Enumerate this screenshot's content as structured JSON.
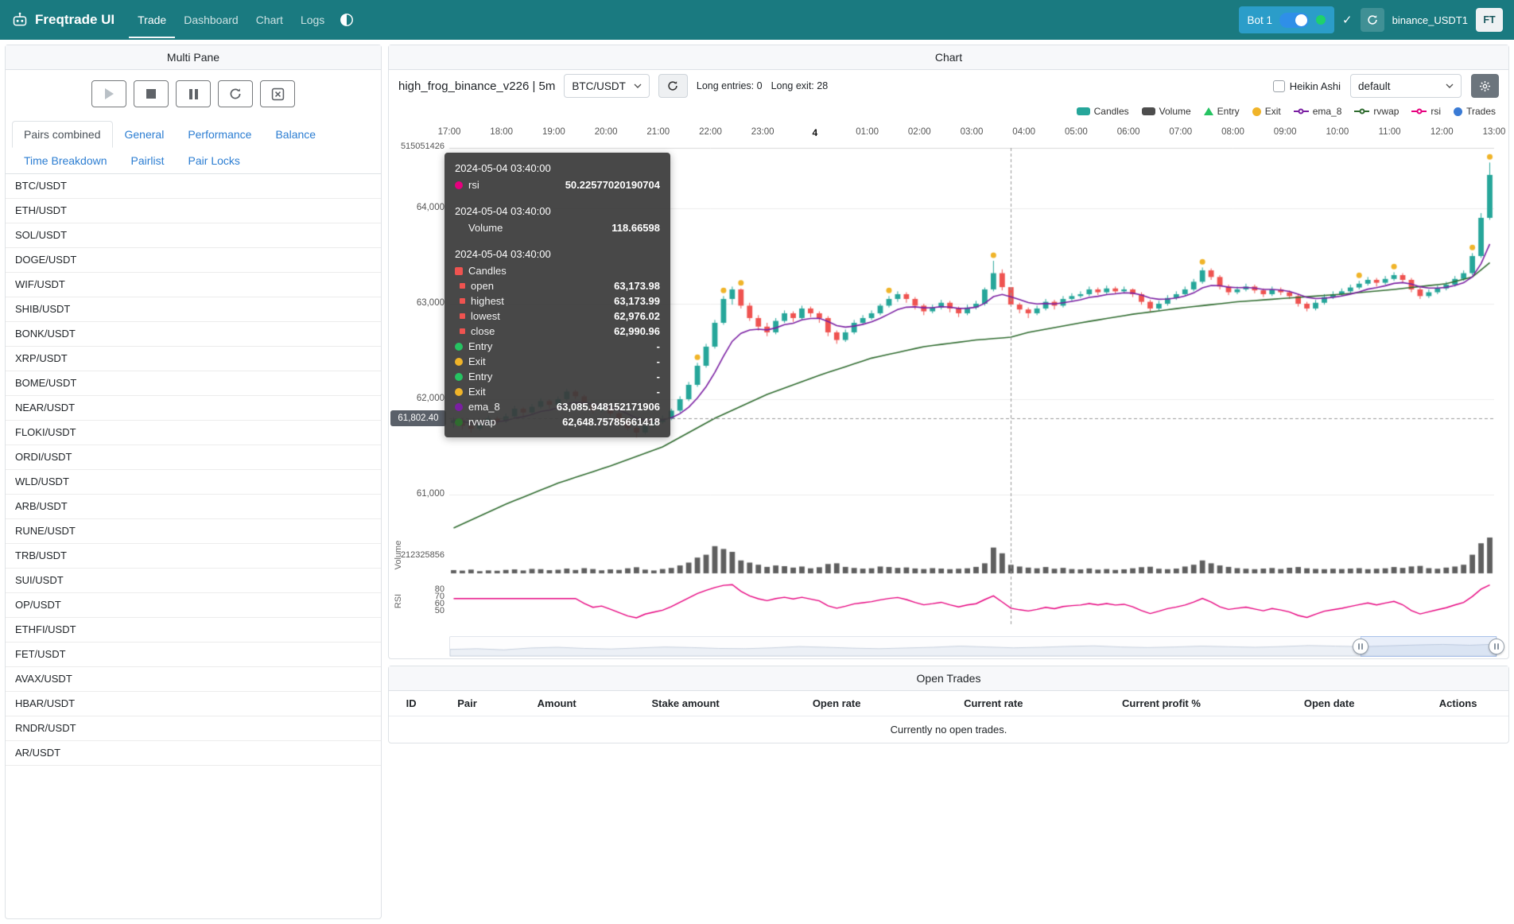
{
  "navbar": {
    "brand": "Freqtrade UI",
    "items": [
      {
        "label": "Trade",
        "active": true
      },
      {
        "label": "Dashboard",
        "active": false
      },
      {
        "label": "Chart",
        "active": false
      },
      {
        "label": "Logs",
        "active": false
      }
    ],
    "bot_chip": {
      "label": "Bot 1"
    },
    "check_label": "✓",
    "login_label": "binance_USDT1",
    "avatar_label": "FT"
  },
  "sidebar": {
    "title": "Multi Pane",
    "tabs": [
      {
        "label": "Pairs combined",
        "active": true
      },
      {
        "label": "General",
        "active": false
      },
      {
        "label": "Performance",
        "active": false
      },
      {
        "label": "Balance",
        "active": false
      },
      {
        "label": "Time Breakdown",
        "active": false
      },
      {
        "label": "Pairlist",
        "active": false
      },
      {
        "label": "Pair Locks",
        "active": false
      }
    ],
    "pairs": [
      "BTC/USDT",
      "ETH/USDT",
      "SOL/USDT",
      "DOGE/USDT",
      "WIF/USDT",
      "SHIB/USDT",
      "BONK/USDT",
      "XRP/USDT",
      "BOME/USDT",
      "NEAR/USDT",
      "FLOKI/USDT",
      "ORDI/USDT",
      "WLD/USDT",
      "ARB/USDT",
      "RUNE/USDT",
      "TRB/USDT",
      "SUI/USDT",
      "OP/USDT",
      "ETHFI/USDT",
      "FET/USDT",
      "AVAX/USDT",
      "HBAR/USDT",
      "RNDR/USDT",
      "AR/USDT"
    ]
  },
  "chart": {
    "panel_title": "Chart",
    "strategy_label": "high_frog_binance_v226 | 5m",
    "pair_selected": "BTC/USDT",
    "long_entries_label": "Long entries: 0",
    "long_exits_label": "Long exit: 28",
    "heikin_label": "Heikin Ashi",
    "plot_config_selected": "default",
    "volume_axis_label": "Volume",
    "rsi_axis_label": "RSI",
    "axis_top_label": "515051426",
    "axis_volume_label": "212325856",
    "price_pointer_label": "61,802.40",
    "legend": [
      {
        "label": "Candles",
        "shape": "roundrect",
        "color": "#26a69a"
      },
      {
        "label": "Volume",
        "shape": "roundrect",
        "color": "#4d4d4d"
      },
      {
        "label": "Entry",
        "shape": "triangle",
        "color": "#26c362"
      },
      {
        "label": "Exit",
        "shape": "circle",
        "color": "#f0b429"
      },
      {
        "label": "ema_8",
        "shape": "linedot",
        "color": "#7a1fa2"
      },
      {
        "label": "rvwap",
        "shape": "linedot",
        "color": "#2f6b2f"
      },
      {
        "label": "rsi",
        "shape": "linedot",
        "color": "#e6007e"
      },
      {
        "label": "Trades",
        "shape": "circle",
        "color": "#3a7bd5"
      }
    ]
  },
  "tooltip": {
    "groups": [
      {
        "time": "2024-05-04 03:40:00",
        "rows": [
          {
            "m": "dot",
            "c": "#e6007e",
            "label": "rsi",
            "value": "50.22577020190704"
          }
        ]
      },
      {
        "time": "2024-05-04 03:40:00",
        "rows": [
          {
            "m": "none",
            "c": "",
            "label": "Volume",
            "value": "118.66598"
          }
        ]
      },
      {
        "time": "2024-05-04 03:40:00",
        "rows": [
          {
            "m": "sq",
            "c": "#ef5350",
            "label": "Candles",
            "value": ""
          },
          {
            "m": "minisq",
            "c": "#ef5350",
            "label": "open",
            "value": "63,173.98"
          },
          {
            "m": "minisq",
            "c": "#ef5350",
            "label": "highest",
            "value": "63,173.99"
          },
          {
            "m": "minisq",
            "c": "#ef5350",
            "label": "lowest",
            "value": "62,976.02"
          },
          {
            "m": "minisq",
            "c": "#ef5350",
            "label": "close",
            "value": "62,990.96"
          },
          {
            "m": "dot",
            "c": "#26c362",
            "label": "Entry",
            "value": "-"
          },
          {
            "m": "dot",
            "c": "#f0b429",
            "label": "Exit",
            "value": "-"
          },
          {
            "m": "dot",
            "c": "#26c362",
            "label": "Entry",
            "value": "-"
          },
          {
            "m": "dot",
            "c": "#f0b429",
            "label": "Exit",
            "value": "-"
          },
          {
            "m": "dot",
            "c": "#7a1fa2",
            "label": "ema_8",
            "value": "63,085.948152171906"
          },
          {
            "m": "dot",
            "c": "#2f6b2f",
            "label": "rvwap",
            "value": "62,648.75785661418"
          }
        ]
      }
    ]
  },
  "chart_data": {
    "type": "candlestick",
    "pair": "BTC/USDT",
    "timeframe": "5m",
    "x_labels": [
      "17:00",
      "18:00",
      "19:00",
      "20:00",
      "21:00",
      "22:00",
      "23:00",
      "4",
      "01:00",
      "02:00",
      "03:00",
      "04:00",
      "05:00",
      "06:00",
      "07:00",
      "08:00",
      "09:00",
      "10:00",
      "11:00",
      "12:00",
      "13:00"
    ],
    "ylim": [
      60633,
      64633
    ],
    "price_ticks": [
      {
        "v": 64000,
        "label": "64,000"
      },
      {
        "v": 63000,
        "label": "63,000"
      },
      {
        "v": 62000,
        "label": "62,000"
      },
      {
        "v": 61000,
        "label": "61,000"
      }
    ],
    "rsi_ticks": [
      {
        "v": 80,
        "label": "80"
      },
      {
        "v": 70,
        "label": "70"
      },
      {
        "v": 60,
        "label": "60"
      },
      {
        "v": 50,
        "label": "50"
      }
    ],
    "rsi_ylim": [
      30,
      95
    ],
    "ema_period": 8,
    "rsi_period": 14,
    "crosshair": {
      "index": 64,
      "price": 61802.4
    },
    "exit_indices": [
      28,
      31,
      33,
      50,
      62,
      86,
      104,
      108,
      117,
      119
    ],
    "zoom_window": [
      0.87,
      1.0
    ],
    "zoom_shadow": [
      0.35,
      0.4,
      0.32,
      0.45,
      0.5,
      0.42,
      0.38,
      0.45,
      0.52,
      0.48,
      0.42,
      0.4,
      0.46,
      0.55,
      0.5,
      0.44,
      0.4,
      0.45,
      0.5,
      0.58,
      0.52,
      0.46,
      0.5,
      0.56,
      0.6,
      0.52,
      0.48,
      0.52,
      0.58,
      0.54,
      0.5,
      0.55,
      0.62,
      0.58,
      0.54,
      0.6,
      0.66,
      0.7,
      0.64,
      0.72
    ],
    "colors": {
      "up": "#26a69a",
      "down": "#ef5350",
      "ema": "#7a1fa2",
      "rvwap": "#2f6b2f",
      "rsi": "#e6007e",
      "volume": "#5f5f5f",
      "exit": "#f0b429",
      "crosshair": "#999999"
    },
    "rvwap_anchors": [
      [
        0,
        60650
      ],
      [
        6,
        60900
      ],
      [
        12,
        61120
      ],
      [
        18,
        61300
      ],
      [
        24,
        61500
      ],
      [
        30,
        61800
      ],
      [
        36,
        62050
      ],
      [
        42,
        62250
      ],
      [
        48,
        62430
      ],
      [
        54,
        62550
      ],
      [
        60,
        62620
      ],
      [
        64,
        62649
      ],
      [
        66,
        62700
      ],
      [
        72,
        62800
      ],
      [
        78,
        62890
      ],
      [
        84,
        62960
      ],
      [
        90,
        63020
      ],
      [
        96,
        63060
      ],
      [
        102,
        63100
      ],
      [
        108,
        63150
      ],
      [
        114,
        63210
      ],
      [
        117,
        63280
      ],
      [
        119,
        63430
      ]
    ],
    "candles": [
      [
        61750,
        61810,
        61700,
        61780
      ],
      [
        61780,
        61800,
        61680,
        61720
      ],
      [
        61720,
        61750,
        61650,
        61690
      ],
      [
        61690,
        61770,
        61670,
        61740
      ],
      [
        61740,
        61830,
        61720,
        61800
      ],
      [
        61800,
        61820,
        61730,
        61770
      ],
      [
        61770,
        61850,
        61750,
        61820
      ],
      [
        61820,
        61930,
        61800,
        61900
      ],
      [
        61900,
        61920,
        61820,
        61860
      ],
      [
        61860,
        61950,
        61840,
        61920
      ],
      [
        61920,
        62010,
        61900,
        61980
      ],
      [
        61980,
        62000,
        61900,
        61940
      ],
      [
        61940,
        62030,
        61920,
        62000
      ],
      [
        62000,
        62110,
        61980,
        62080
      ],
      [
        62080,
        62100,
        62000,
        62030
      ],
      [
        62030,
        62050,
        61920,
        61950
      ],
      [
        61950,
        61970,
        61850,
        61880
      ],
      [
        61880,
        61940,
        61860,
        61910
      ],
      [
        61910,
        61920,
        61820,
        61850
      ],
      [
        61850,
        61870,
        61750,
        61780
      ],
      [
        61780,
        61800,
        61670,
        61700
      ],
      [
        61700,
        61720,
        61600,
        61650
      ],
      [
        61650,
        61740,
        61630,
        61720
      ],
      [
        61720,
        61790,
        61700,
        61760
      ],
      [
        61760,
        61830,
        61740,
        61800
      ],
      [
        61800,
        61900,
        61780,
        61880
      ],
      [
        61880,
        62030,
        61860,
        62000
      ],
      [
        62000,
        62180,
        61980,
        62150
      ],
      [
        62150,
        62380,
        62130,
        62350
      ],
      [
        62350,
        62580,
        62330,
        62550
      ],
      [
        62550,
        62830,
        62530,
        62800
      ],
      [
        62800,
        63080,
        62780,
        63050
      ],
      [
        63050,
        63180,
        62990,
        63150
      ],
      [
        63150,
        63160,
        62950,
        62980
      ],
      [
        62980,
        63010,
        62820,
        62850
      ],
      [
        62850,
        62880,
        62720,
        62760
      ],
      [
        62760,
        62800,
        62660,
        62700
      ],
      [
        62700,
        62850,
        62680,
        62820
      ],
      [
        62820,
        62930,
        62800,
        62900
      ],
      [
        62900,
        62920,
        62810,
        62850
      ],
      [
        62850,
        62980,
        62830,
        62950
      ],
      [
        62950,
        62970,
        62860,
        62900
      ],
      [
        62900,
        62920,
        62800,
        62850
      ],
      [
        62850,
        62870,
        62660,
        62700
      ],
      [
        62700,
        62720,
        62580,
        62620
      ],
      [
        62620,
        62730,
        62600,
        62700
      ],
      [
        62700,
        62830,
        62680,
        62800
      ],
      [
        62800,
        62880,
        62780,
        62850
      ],
      [
        62850,
        62930,
        62830,
        62900
      ],
      [
        62900,
        63000,
        62880,
        62980
      ],
      [
        62980,
        63080,
        62960,
        63050
      ],
      [
        63050,
        63130,
        63020,
        63100
      ],
      [
        63100,
        63120,
        63010,
        63050
      ],
      [
        63050,
        63070,
        62940,
        62980
      ],
      [
        62980,
        63000,
        62880,
        62920
      ],
      [
        62920,
        62990,
        62900,
        62960
      ],
      [
        62960,
        63040,
        62940,
        63010
      ],
      [
        63010,
        63030,
        62910,
        62950
      ],
      [
        62950,
        62970,
        62860,
        62900
      ],
      [
        62900,
        62990,
        62880,
        62960
      ],
      [
        62960,
        63030,
        62940,
        63000
      ],
      [
        63000,
        63170,
        62980,
        63150
      ],
      [
        63150,
        63450,
        63130,
        63320
      ],
      [
        63320,
        63360,
        63140,
        63174
      ],
      [
        63174,
        63174,
        62976,
        62991
      ],
      [
        62991,
        63010,
        62900,
        62940
      ],
      [
        62940,
        62960,
        62850,
        62900
      ],
      [
        62900,
        62980,
        62880,
        62950
      ],
      [
        62950,
        63050,
        62930,
        63020
      ],
      [
        63020,
        63040,
        62940,
        62980
      ],
      [
        62980,
        63080,
        62960,
        63050
      ],
      [
        63050,
        63110,
        63030,
        63080
      ],
      [
        63080,
        63130,
        63060,
        63100
      ],
      [
        63100,
        63180,
        63080,
        63150
      ],
      [
        63150,
        63170,
        63090,
        63120
      ],
      [
        63120,
        63190,
        63100,
        63160
      ],
      [
        63160,
        63180,
        63100,
        63130
      ],
      [
        63130,
        63180,
        63110,
        63150
      ],
      [
        63150,
        63160,
        63070,
        63100
      ],
      [
        63100,
        63120,
        62990,
        63020
      ],
      [
        63020,
        63040,
        62920,
        62950
      ],
      [
        62950,
        63030,
        62930,
        63000
      ],
      [
        63000,
        63090,
        62980,
        63060
      ],
      [
        63060,
        63130,
        63040,
        63100
      ],
      [
        63100,
        63180,
        63080,
        63150
      ],
      [
        63150,
        63260,
        63130,
        63230
      ],
      [
        63230,
        63380,
        63210,
        63350
      ],
      [
        63350,
        63370,
        63250,
        63280
      ],
      [
        63280,
        63300,
        63150,
        63180
      ],
      [
        63180,
        63200,
        63090,
        63120
      ],
      [
        63120,
        63180,
        63100,
        63150
      ],
      [
        63150,
        63210,
        63130,
        63180
      ],
      [
        63180,
        63200,
        63110,
        63140
      ],
      [
        63140,
        63160,
        63070,
        63100
      ],
      [
        63100,
        63180,
        63080,
        63150
      ],
      [
        63150,
        63170,
        63090,
        63120
      ],
      [
        63120,
        63140,
        63050,
        63080
      ],
      [
        63080,
        63100,
        62970,
        63000
      ],
      [
        63000,
        63020,
        62920,
        62950
      ],
      [
        62950,
        63040,
        62930,
        63010
      ],
      [
        63010,
        63100,
        62990,
        63070
      ],
      [
        63070,
        63130,
        63050,
        63100
      ],
      [
        63100,
        63160,
        63080,
        63130
      ],
      [
        63130,
        63200,
        63110,
        63170
      ],
      [
        63170,
        63240,
        63150,
        63210
      ],
      [
        63210,
        63280,
        63190,
        63250
      ],
      [
        63250,
        63270,
        63180,
        63220
      ],
      [
        63220,
        63290,
        63200,
        63260
      ],
      [
        63260,
        63330,
        63240,
        63300
      ],
      [
        63300,
        63320,
        63220,
        63250
      ],
      [
        63250,
        63270,
        63120,
        63150
      ],
      [
        63150,
        63170,
        63050,
        63080
      ],
      [
        63080,
        63150,
        63060,
        63120
      ],
      [
        63120,
        63190,
        63100,
        63160
      ],
      [
        63160,
        63230,
        63140,
        63200
      ],
      [
        63200,
        63290,
        63180,
        63260
      ],
      [
        63260,
        63350,
        63240,
        63320
      ],
      [
        63320,
        63530,
        63300,
        63500
      ],
      [
        63500,
        63950,
        63480,
        63900
      ],
      [
        63900,
        64480,
        63880,
        64350
      ]
    ],
    "volumes": [
      45,
      38,
      52,
      30,
      41,
      36,
      48,
      55,
      40,
      62,
      58,
      44,
      50,
      66,
      47,
      72,
      60,
      42,
      55,
      48,
      70,
      85,
      52,
      40,
      60,
      75,
      110,
      150,
      220,
      260,
      380,
      340,
      300,
      180,
      150,
      120,
      90,
      110,
      100,
      80,
      95,
      70,
      85,
      130,
      140,
      90,
      75,
      65,
      70,
      95,
      88,
      76,
      82,
      68,
      60,
      72,
      66,
      58,
      64,
      70,
      90,
      140,
      360,
      280,
      119,
      95,
      80,
      70,
      88,
      64,
      76,
      60,
      55,
      68,
      52,
      60,
      48,
      56,
      70,
      86,
      92,
      64,
      58,
      66,
      95,
      120,
      180,
      140,
      110,
      90,
      72,
      64,
      58,
      66,
      74,
      60,
      78,
      88,
      70,
      62,
      58,
      64,
      60,
      66,
      72,
      58,
      64,
      70,
      88,
      76,
      96,
      104,
      72,
      64,
      80,
      95,
      120,
      260,
      420,
      500
    ]
  },
  "open_trades": {
    "title": "Open Trades",
    "columns": [
      "ID",
      "Pair",
      "Amount",
      "Stake amount",
      "Open rate",
      "Current rate",
      "Current profit %",
      "Open date",
      "Actions"
    ],
    "empty_message": "Currently no open trades."
  }
}
